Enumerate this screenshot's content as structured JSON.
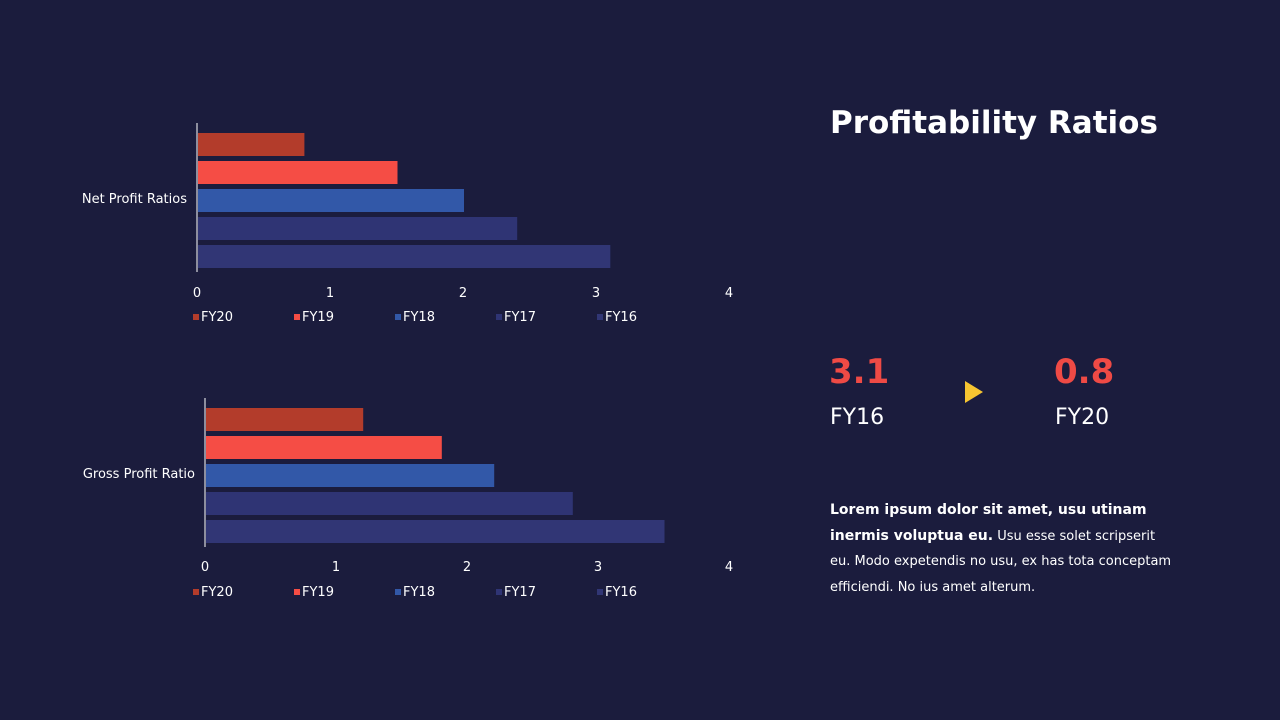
{
  "title": "Profitability Ratios",
  "kpis": {
    "start": {
      "value": "3.1",
      "label": "FY16"
    },
    "end": {
      "value": "0.8",
      "label": "FY20"
    }
  },
  "body": {
    "bold": "Lorem ipsum dolor sit amet, usu utinam inermis voluptua eu.",
    "regular": " Usu esse solet scripserit eu. Modo expetendis no usu, ex has tota conceptam efficiendi. No ius amet alterum."
  },
  "colors": {
    "background": "#1b1c3d",
    "FY20": "#b33c2b",
    "FY19": "#f54d45",
    "FY18": "#3258a8",
    "FY17": "#2f3474",
    "FY16": "#313675",
    "accent_red": "#ef4a45",
    "accent_yellow": "#f7c531"
  },
  "chart_data": [
    {
      "type": "bar",
      "orientation": "horizontal",
      "categories": [
        "Net Profit Ratios"
      ],
      "series": [
        {
          "name": "FY20",
          "values": [
            0.8
          ]
        },
        {
          "name": "FY19",
          "values": [
            1.5
          ]
        },
        {
          "name": "FY18",
          "values": [
            2.0
          ]
        },
        {
          "name": "FY17",
          "values": [
            2.4
          ]
        },
        {
          "name": "FY16",
          "values": [
            3.1
          ]
        }
      ],
      "xlim": [
        0,
        4
      ],
      "xticks": [
        "0",
        "1",
        "2",
        "3",
        "4"
      ],
      "grid": false,
      "legend": "bottom"
    },
    {
      "type": "bar",
      "orientation": "horizontal",
      "categories": [
        "Gross Profit Ratio"
      ],
      "series": [
        {
          "name": "FY20",
          "values": [
            1.2
          ]
        },
        {
          "name": "FY19",
          "values": [
            1.8
          ]
        },
        {
          "name": "FY18",
          "values": [
            2.2
          ]
        },
        {
          "name": "FY17",
          "values": [
            2.8
          ]
        },
        {
          "name": "FY16",
          "values": [
            3.5
          ]
        }
      ],
      "xlim": [
        0,
        4
      ],
      "xticks": [
        "0",
        "1",
        "2",
        "3",
        "4"
      ],
      "grid": false,
      "legend": "bottom"
    }
  ]
}
